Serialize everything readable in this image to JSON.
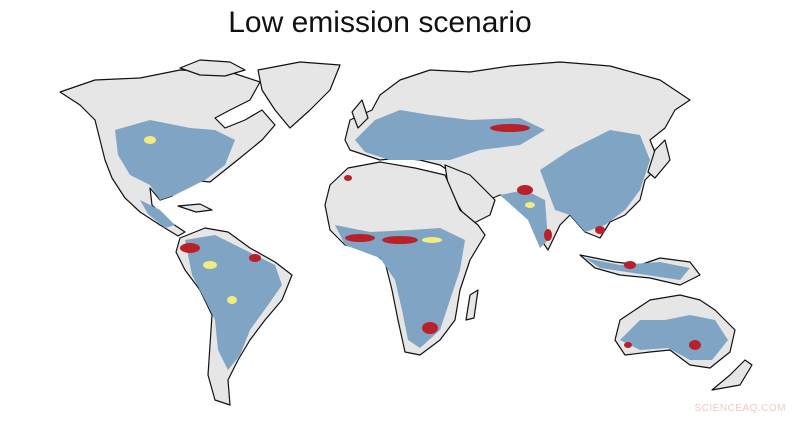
{
  "title": "Low emission scenario",
  "watermark": "SCIENCEAQ.COM"
}
